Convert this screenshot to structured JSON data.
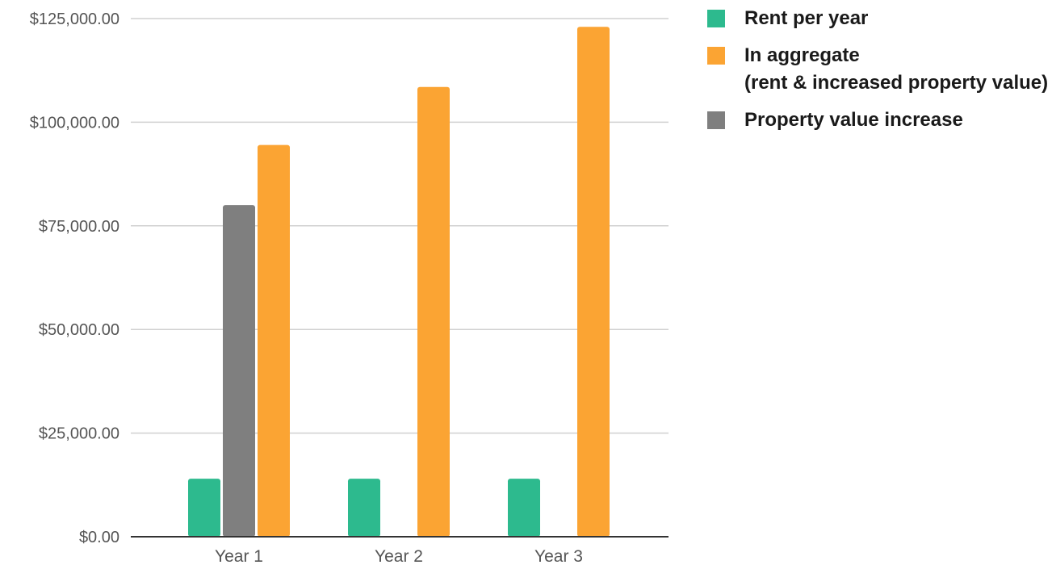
{
  "chart_data": {
    "type": "bar",
    "categories": [
      "Year 1",
      "Year 2",
      "Year 3"
    ],
    "series": [
      {
        "name": "Rent per year",
        "color": "#2dba8e",
        "values": [
          14000,
          14000,
          14000
        ]
      },
      {
        "name": "Property value increase",
        "color": "#7f7f7f",
        "values": [
          80000,
          null,
          null
        ]
      },
      {
        "name": "In aggregate\n(rent & increased property value)",
        "color": "#fba433",
        "values": [
          94500,
          108500,
          123000
        ]
      }
    ],
    "legend_order": [
      0,
      2,
      1
    ],
    "legend_position": "right",
    "yticks": [
      "$0.00",
      "$25,000.00",
      "$50,000.00",
      "$75,000.00",
      "$100,000.00",
      "$125,000.00"
    ],
    "ytick_values": [
      0,
      25000,
      50000,
      75000,
      100000,
      125000
    ],
    "ylim": [
      0,
      125000
    ],
    "grid": true
  }
}
